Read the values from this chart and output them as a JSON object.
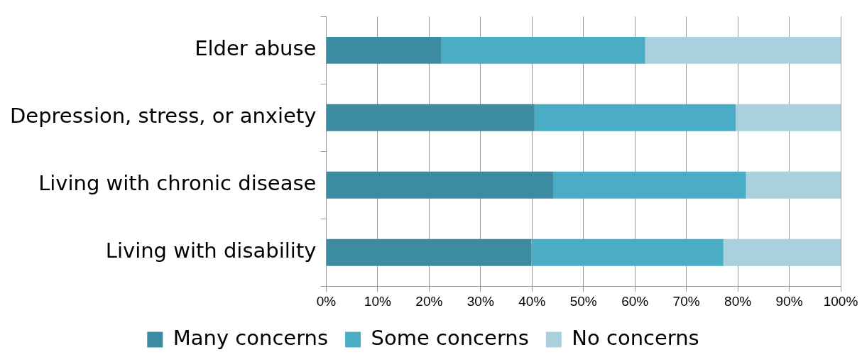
{
  "chart_data": {
    "type": "bar",
    "orientation": "horizontal",
    "stacked": true,
    "categories": [
      "Elder abuse",
      "Depression, stress, or anxiety",
      "Living with chronic disease",
      "Living with disability"
    ],
    "series": [
      {
        "name": "Many concerns",
        "color": "#3d8ba0",
        "values": [
          22.4,
          40.5,
          44.1,
          39.9
        ]
      },
      {
        "name": "Some concerns",
        "color": "#4bacc6",
        "values": [
          39.6,
          39.1,
          37.5,
          37.3
        ]
      },
      {
        "name": "No concerns",
        "color": "#a9d0dd",
        "values": [
          38.0,
          20.4,
          18.4,
          22.8
        ]
      }
    ],
    "xlim": [
      0,
      100
    ],
    "xticks": [
      {
        "value": 0,
        "label": "0%"
      },
      {
        "value": 10,
        "label": "10%"
      },
      {
        "value": 20,
        "label": "20%"
      },
      {
        "value": 30,
        "label": "30%"
      },
      {
        "value": 40,
        "label": "40%"
      },
      {
        "value": 50,
        "label": "50%"
      },
      {
        "value": 60,
        "label": "60%"
      },
      {
        "value": 70,
        "label": "70%"
      },
      {
        "value": 80,
        "label": "80%"
      },
      {
        "value": 90,
        "label": "90%"
      },
      {
        "value": 100,
        "label": "100%"
      }
    ],
    "grid": "x",
    "legend": "bottom"
  }
}
